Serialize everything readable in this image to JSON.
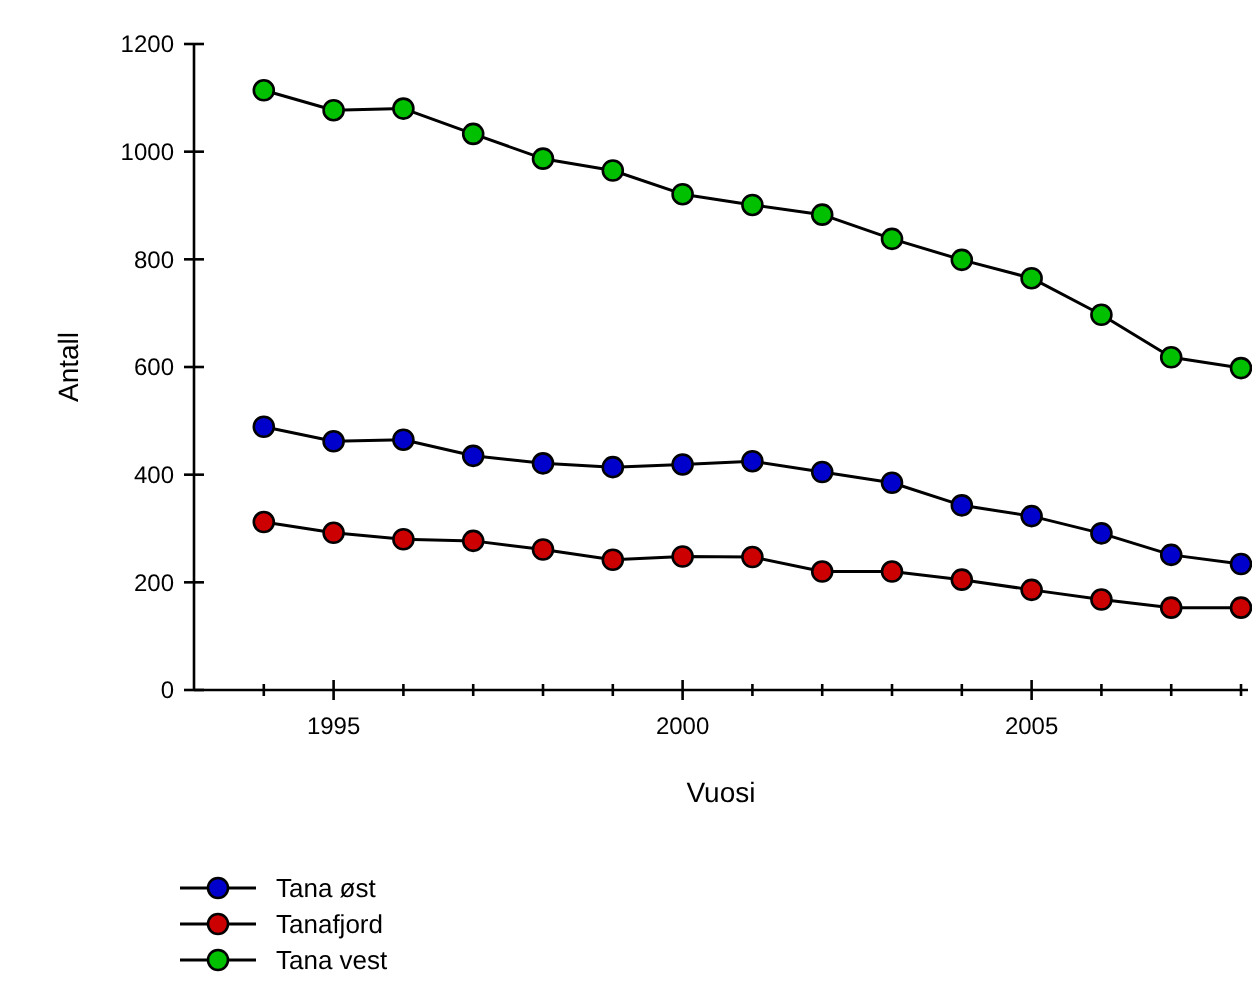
{
  "chart_data": {
    "type": "line",
    "xlabel": "Vuosi",
    "ylabel": "Antall",
    "x": [
      1994,
      1995,
      1996,
      1997,
      1998,
      1999,
      2000,
      2001,
      2002,
      2003,
      2004,
      2005,
      2006,
      2007,
      2008
    ],
    "series": [
      {
        "name": "Tana øst",
        "color": "#0000cc",
        "values": [
          489,
          462,
          465,
          435,
          421,
          414,
          419,
          425,
          405,
          385,
          343,
          323,
          291,
          251,
          234
        ]
      },
      {
        "name": "Tanafjord",
        "color": "#cc0000",
        "values": [
          312,
          292,
          280,
          277,
          261,
          242,
          248,
          247,
          220,
          220,
          205,
          186,
          168,
          153,
          153
        ]
      },
      {
        "name": "Tana vest",
        "color": "#00c000",
        "values": [
          1114,
          1077,
          1080,
          1033,
          987,
          965,
          921,
          901,
          883,
          838,
          799,
          765,
          697,
          618,
          598
        ]
      }
    ],
    "xlim": [
      1993,
      2008.1
    ],
    "xticks": [
      {
        "value": 1994,
        "label": null
      },
      1995,
      {
        "value": 1996,
        "label": null
      },
      {
        "value": 1997,
        "label": null
      },
      {
        "value": 1998,
        "label": null
      },
      {
        "value": 1999,
        "label": null
      },
      2000,
      {
        "value": 2001,
        "label": null
      },
      {
        "value": 2002,
        "label": null
      },
      {
        "value": 2003,
        "label": null
      },
      {
        "value": 2004,
        "label": null
      },
      2005,
      {
        "value": 2006,
        "label": null
      },
      {
        "value": 2007,
        "label": null
      },
      {
        "value": 2008,
        "label": null
      }
    ],
    "ylim": [
      0,
      1200
    ],
    "yticks": [
      0,
      200,
      400,
      600,
      800,
      1000,
      1200
    ],
    "grid": false,
    "legend": "bottom left",
    "marker": "circle",
    "line_style": "solid"
  }
}
